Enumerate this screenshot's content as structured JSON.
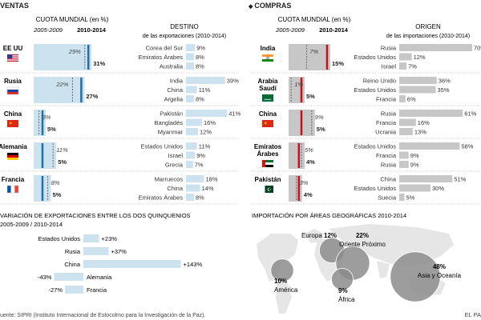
{
  "left": {
    "header": "VENTAS",
    "share_title": "CUOTA MUNDIAL (en %)",
    "period_a": "2005-2009",
    "period_b": "2010-2014",
    "dest_title": "DESTINO",
    "dest_subtitle": "de las exportaciones (2010-2014)"
  },
  "right": {
    "header": "COMPRAS",
    "share_title": "CUOTA MUNDIAL (en %)",
    "period_a": "2005-2009",
    "period_b": "2010-2014",
    "origin_title": "ORIGEN",
    "origin_subtitle": "de las importaciones (2010-2014)"
  },
  "variation": {
    "title": "VARIACIÓN DE EXPORTACIONES ENTRE LOS DOS QUINQUENIOS",
    "subtitle": "2005-2009 / 2010-2014"
  },
  "geo": {
    "title": "IMPORTACIÓN POR ÁREAS GEOGRÁFICAS 2010-2014"
  },
  "footer": {
    "source": "uente: SIPRI (Instituto Internacional de Estocolmo para la Investigación de la Paz).",
    "brand": "EL PA"
  },
  "colors": {
    "bar_light": "#cce3ef",
    "accent_blue": "#1f6fa8",
    "bar_grey": "#c7c7c7",
    "accent_red": "#c4121a",
    "bubble": "#8c8c8c",
    "map": "#e6e6e6"
  },
  "chart_data": [
    {
      "type": "bar",
      "title": "CUOTA MUNDIAL (en %)",
      "categories": [
        "EE UU",
        "Rusia",
        "China",
        "Alemania",
        "Francia"
      ],
      "series": [
        {
          "name": "2005-2009",
          "values": [
            29,
            22,
            3,
            11,
            8
          ]
        },
        {
          "name": "2010-2014",
          "values": [
            31,
            27,
            5,
            5,
            5
          ]
        }
      ],
      "value_labels_a": [
        "29%",
        "22%",
        "3%",
        "11%",
        "8%"
      ],
      "value_labels_b": [
        "31%",
        "27%",
        "5%",
        "5%",
        "5%"
      ]
    },
    {
      "type": "bar",
      "title": "DESTINO",
      "groups": [
        {
          "country": "EE UU",
          "items": [
            {
              "name": "Corea del Sur",
              "value": 9,
              "label": "9%"
            },
            {
              "name": "Emiratos Árabes",
              "value": 8,
              "label": "8%"
            },
            {
              "name": "Australia",
              "value": 8,
              "label": "8%"
            }
          ]
        },
        {
          "country": "Rusia",
          "items": [
            {
              "name": "India",
              "value": 39,
              "label": "39%"
            },
            {
              "name": "China",
              "value": 11,
              "label": "11%"
            },
            {
              "name": "Argelia",
              "value": 8,
              "label": "8%"
            }
          ]
        },
        {
          "country": "China",
          "items": [
            {
              "name": "Pakistán",
              "value": 41,
              "label": "41%"
            },
            {
              "name": "Bangladés",
              "value": 16,
              "label": "16%"
            },
            {
              "name": "Myanmar",
              "value": 12,
              "label": "12%"
            }
          ]
        },
        {
          "country": "Alemania",
          "items": [
            {
              "name": "Estados Unidos",
              "value": 11,
              "label": "11%"
            },
            {
              "name": "Israel",
              "value": 9,
              "label": "9%"
            },
            {
              "name": "Grecia",
              "value": 7,
              "label": "7%"
            }
          ]
        },
        {
          "country": "Francia",
          "items": [
            {
              "name": "Marruecos",
              "value": 18,
              "label": "18%"
            },
            {
              "name": "China",
              "value": 14,
              "label": "14%"
            },
            {
              "name": "Emiratos Árabes",
              "value": 8,
              "label": "8%"
            }
          ]
        }
      ]
    },
    {
      "type": "bar",
      "title": "CUOTA MUNDIAL (en %)",
      "categories": [
        "India",
        "Arabia Saudí",
        "China",
        "Emiratos Árabes",
        "Pakistán"
      ],
      "series": [
        {
          "name": "2005-2009",
          "values": [
            7,
            1,
            9,
            5,
            3
          ]
        },
        {
          "name": "2010-2014",
          "values": [
            15,
            5,
            5,
            4,
            4
          ]
        }
      ],
      "value_labels_a": [
        "7%",
        "1%",
        "9%",
        "5%",
        "3%"
      ],
      "value_labels_b": [
        "15%",
        "5%",
        "5%",
        "4%",
        "4%"
      ]
    },
    {
      "type": "bar",
      "title": "ORIGEN",
      "groups": [
        {
          "country": "India",
          "items": [
            {
              "name": "Rusia",
              "value": 70,
              "label": "70%"
            },
            {
              "name": "Estados Unidos",
              "value": 12,
              "label": "12%"
            },
            {
              "name": "Israel",
              "value": 7,
              "label": "7%"
            }
          ]
        },
        {
          "country": "Arabia Saudí",
          "items": [
            {
              "name": "Reino Unido",
              "value": 36,
              "label": "36%"
            },
            {
              "name": "Estados Unidos",
              "value": 35,
              "label": "35%"
            },
            {
              "name": "Francia",
              "value": 6,
              "label": "6%"
            }
          ]
        },
        {
          "country": "China",
          "items": [
            {
              "name": "Rusia",
              "value": 61,
              "label": "61%"
            },
            {
              "name": "Francia",
              "value": 16,
              "label": "16%"
            },
            {
              "name": "Ucrania",
              "value": 13,
              "label": "13%"
            }
          ]
        },
        {
          "country": "Emiratos Árabes",
          "items": [
            {
              "name": "Estados Unidos",
              "value": 58,
              "label": "58%"
            },
            {
              "name": "Francia",
              "value": 9,
              "label": "9%"
            },
            {
              "name": "Rusia",
              "value": 9,
              "label": "9%"
            }
          ]
        },
        {
          "country": "Pakistán",
          "items": [
            {
              "name": "China",
              "value": 51,
              "label": "51%"
            },
            {
              "name": "Estados Unidos",
              "value": 30,
              "label": "30%"
            },
            {
              "name": "Suecia",
              "value": 5,
              "label": "5%"
            }
          ]
        }
      ]
    },
    {
      "type": "bar",
      "title": "VARIACIÓN DE EXPORTACIONES ENTRE LOS DOS QUINQUENIOS",
      "subtitle": "2005-2009 / 2010-2014",
      "categories": [
        "Estados Unidos",
        "Rusia",
        "China",
        "Alemania",
        "Francia"
      ],
      "values": [
        23,
        37,
        143,
        -43,
        -27
      ],
      "labels": [
        "+23%",
        "+37%",
        "+143%",
        "-43%",
        "-27%"
      ]
    },
    {
      "type": "scatter",
      "title": "IMPORTACIÓN POR ÁREAS GEOGRÁFICAS 2010-2014",
      "items": [
        {
          "region": "Europa",
          "value": 12,
          "label": "12%"
        },
        {
          "region": "Oriente Próximo",
          "value": 22,
          "label": "22%"
        },
        {
          "region": "Asia y Oceanía",
          "value": 48,
          "label": "48%"
        },
        {
          "region": "América",
          "value": 10,
          "label": "10%"
        },
        {
          "region": "África",
          "value": 9,
          "label": "9%"
        }
      ]
    }
  ]
}
